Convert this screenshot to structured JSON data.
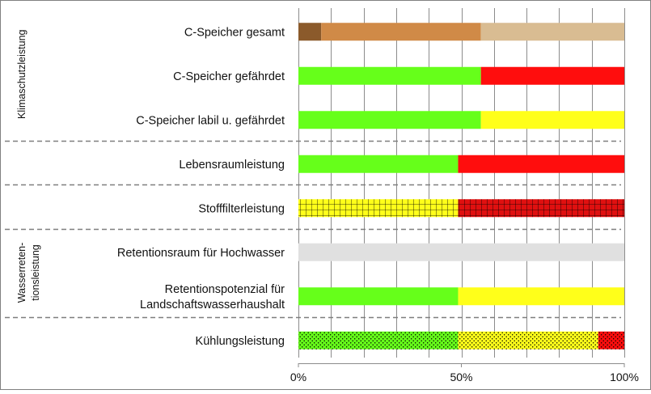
{
  "chart_data": {
    "type": "bar",
    "orientation": "horizontal",
    "stacked": "percent",
    "xlim": [
      0,
      100
    ],
    "x_ticks": [
      "0%",
      "50%",
      "100%"
    ],
    "grid": true,
    "groups": [
      {
        "label": "Klimaschutzleistung",
        "rows": [
          0,
          1,
          2
        ]
      },
      {
        "label": "Wasserreten-\ntionsleistung",
        "rows": [
          5,
          6
        ]
      }
    ],
    "categories": [
      "C-Speicher gesamt",
      "C-Speicher gefährdet",
      "C-Speicher labil u. gefährdet",
      "Lebensraumleistung",
      "Stofffilterleistung",
      "Retentionsraum für Hochwasser",
      "Retentionspotenzial für\nLandschaftswasserhaushalt",
      "Kühlungsleistung"
    ],
    "bars": [
      {
        "segments": [
          {
            "value": 7,
            "color": "#8B5A2B",
            "pattern": "none"
          },
          {
            "value": 49,
            "color": "#D08A47",
            "pattern": "none"
          },
          {
            "value": 44,
            "color": "#D9BC92",
            "pattern": "none"
          }
        ]
      },
      {
        "segments": [
          {
            "value": 56,
            "color": "#66FF1A",
            "pattern": "none"
          },
          {
            "value": 44,
            "color": "#FF0D0D",
            "pattern": "none"
          }
        ]
      },
      {
        "segments": [
          {
            "value": 56,
            "color": "#66FF1A",
            "pattern": "none"
          },
          {
            "value": 44,
            "color": "#FFFF1A",
            "pattern": "none"
          }
        ]
      },
      {
        "segments": [
          {
            "value": 49,
            "color": "#66FF1A",
            "pattern": "none"
          },
          {
            "value": 51,
            "color": "#FF0D0D",
            "pattern": "none"
          }
        ]
      },
      {
        "segments": [
          {
            "value": 49,
            "color": "#FFFF1A",
            "pattern": "grid"
          },
          {
            "value": 51,
            "color": "#E01010",
            "pattern": "grid"
          }
        ]
      },
      {
        "segments": [
          {
            "value": 100,
            "color": "#E0E0E0",
            "pattern": "none"
          }
        ]
      },
      {
        "segments": [
          {
            "value": 49,
            "color": "#66FF1A",
            "pattern": "none"
          },
          {
            "value": 51,
            "color": "#FFFF1A",
            "pattern": "none"
          }
        ]
      },
      {
        "segments": [
          {
            "value": 49,
            "color": "#66FF1A",
            "pattern": "dots"
          },
          {
            "value": 43,
            "color": "#FFFF1A",
            "pattern": "dots"
          },
          {
            "value": 8,
            "color": "#FF0D0D",
            "pattern": "dots"
          }
        ]
      }
    ],
    "group_dividers_after_row": [
      2,
      3,
      4,
      6
    ]
  }
}
